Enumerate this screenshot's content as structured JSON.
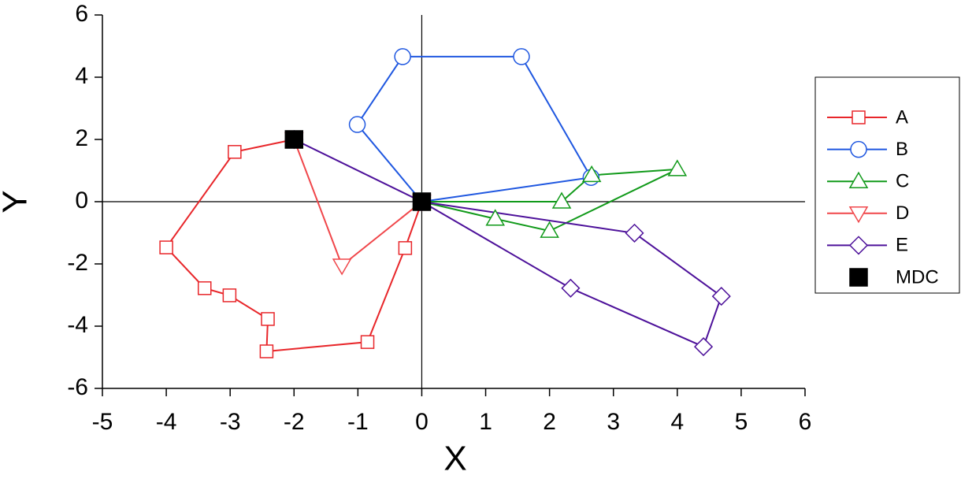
{
  "chart_data": {
    "type": "line",
    "x_label": "X",
    "y_label": "Y",
    "xlim": [
      -5,
      6
    ],
    "xticks": [
      -5,
      -4,
      -3,
      -2,
      -1,
      0,
      1,
      2,
      3,
      4,
      5,
      6
    ],
    "ylim": [
      -6,
      6
    ],
    "yticks": [
      -6,
      -4,
      -2,
      0,
      2,
      4,
      6
    ],
    "series": [
      {
        "name": "A",
        "color": "#e8262a",
        "marker": "square",
        "x": [
          -2,
          -2.93,
          -4.0,
          -3.4,
          -3.01,
          -2.41,
          -2.43,
          -0.85,
          -0.26,
          0
        ],
        "y": [
          2,
          1.6,
          -1.47,
          -2.78,
          -3.01,
          -3.77,
          -4.81,
          -4.51,
          -1.49,
          0
        ]
      },
      {
        "name": "B",
        "color": "#1f57e0",
        "marker": "circle",
        "x": [
          0,
          -1.01,
          -0.3,
          1.56,
          2.65,
          0
        ],
        "y": [
          0,
          2.48,
          4.66,
          4.66,
          0.78,
          0
        ]
      },
      {
        "name": "C",
        "color": "#119a1a",
        "marker": "triangle-up",
        "x": [
          0,
          2.19,
          2.66,
          4.0,
          2.0,
          1.15,
          0
        ],
        "y": [
          0,
          0,
          0.85,
          1.04,
          -0.94,
          -0.55,
          0
        ]
      },
      {
        "name": "D",
        "color": "#f0464a",
        "marker": "triangle-down",
        "x": [
          -2,
          -1.25,
          0
        ],
        "y": [
          2,
          -2.05,
          0
        ]
      },
      {
        "name": "E",
        "color": "#4d119a",
        "marker": "diamond",
        "x": [
          -2,
          0,
          2.33,
          4.41,
          4.69,
          3.33,
          0
        ],
        "y": [
          2,
          0,
          -2.78,
          -4.66,
          -3.04,
          -1.01,
          0
        ]
      },
      {
        "name": "MDC",
        "color": "#000000",
        "marker": "filled-square",
        "line": false,
        "x": [
          -2,
          0
        ],
        "y": [
          2,
          0
        ]
      }
    ]
  }
}
